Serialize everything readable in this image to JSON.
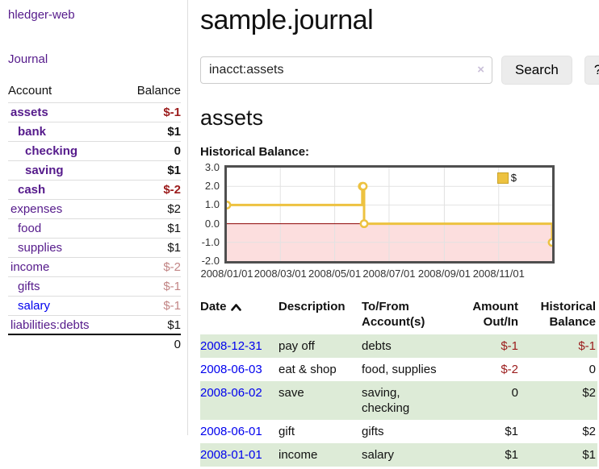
{
  "colors": {
    "link_purple": "#551a8b",
    "link_blue": "#0000ee",
    "negative_strong": "#9b1b1b",
    "negative_muted": "#c28585",
    "row_green": "#ddebd7",
    "button_gray": "#ececec",
    "series_yellow": "#edc240"
  },
  "sidebar": {
    "brand": "hledger-web",
    "journal_label": "Journal",
    "accounts_table": {
      "col_account": "Account",
      "col_balance": "Balance",
      "rows": [
        {
          "name": "assets",
          "balance": "$-1"
        },
        {
          "name": "bank",
          "balance": "$1"
        },
        {
          "name": "checking",
          "balance": "0"
        },
        {
          "name": "saving",
          "balance": "$1"
        },
        {
          "name": "cash",
          "balance": "$-2"
        },
        {
          "name": "expenses",
          "balance": "$2"
        },
        {
          "name": "food",
          "balance": "$1"
        },
        {
          "name": "supplies",
          "balance": "$1"
        },
        {
          "name": "income",
          "balance": "$-2"
        },
        {
          "name": "gifts",
          "balance": "$-1"
        },
        {
          "name": "salary",
          "balance": "$-1"
        },
        {
          "name": "liabilities:debts",
          "balance": "$1"
        }
      ],
      "total": "0"
    }
  },
  "main": {
    "title": "sample.journal",
    "search": {
      "value": "inacct:assets",
      "clear_icon": "×",
      "button_label": "Search",
      "help_label": "?"
    },
    "account_heading": "assets",
    "chart_title": "Historical Balance:"
  },
  "chart_data": {
    "type": "line",
    "step": true,
    "title": "Historical Balance",
    "series": [
      {
        "name": "$",
        "color": "#edc240",
        "points": [
          [
            "2008-01-01",
            1
          ],
          [
            "2008-06-01",
            2
          ],
          [
            "2008-06-02",
            2
          ],
          [
            "2008-06-03",
            0
          ],
          [
            "2008-12-31",
            -1
          ]
        ]
      }
    ],
    "x_range": [
      "2008-01-01",
      "2008-12-31"
    ],
    "ylim": [
      -2,
      3
    ],
    "yticks": [
      {
        "value": 3,
        "label": "3.0"
      },
      {
        "value": 2,
        "label": "2.0"
      },
      {
        "value": 1,
        "label": "1.0"
      },
      {
        "value": 0,
        "label": "0.0"
      },
      {
        "value": -1,
        "label": "-1.0"
      },
      {
        "value": -2,
        "label": "-2.0"
      }
    ],
    "xticks": [
      {
        "date": "2008-01-01",
        "label": "2008/01/01"
      },
      {
        "date": "2008-03-01",
        "label": "2008/03/01"
      },
      {
        "date": "2008-05-01",
        "label": "2008/05/01"
      },
      {
        "date": "2008-07-01",
        "label": "2008/07/01"
      },
      {
        "date": "2008-09-01",
        "label": "2008/09/01"
      },
      {
        "date": "2008-11-01",
        "label": "2008/11/01"
      }
    ],
    "legend_position": "top-right",
    "grid": true,
    "grid_color": "#e2e2e2",
    "zero_line_color": "#8b0000",
    "below_zero_fill": "#fcdede",
    "marker": "open-circle"
  },
  "register": {
    "headers": {
      "date": "Date",
      "description": "Description",
      "accounts": "To/From Account(s)",
      "amount": "Amount Out/In",
      "balance": "Historical Balance"
    },
    "rows": [
      {
        "date": "2008-12-31",
        "description": "pay off",
        "accounts": "debts",
        "amount": "$-1",
        "balance": "$-1"
      },
      {
        "date": "2008-06-03",
        "description": "eat & shop",
        "accounts": "food, supplies",
        "amount": "$-2",
        "balance": "0"
      },
      {
        "date": "2008-06-02",
        "description": "save",
        "accounts": "saving, checking",
        "amount": "0",
        "balance": "$2"
      },
      {
        "date": "2008-06-01",
        "description": "gift",
        "accounts": "gifts",
        "amount": "$1",
        "balance": "$2"
      },
      {
        "date": "2008-01-01",
        "description": "income",
        "accounts": "salary",
        "amount": "$1",
        "balance": "$1"
      }
    ]
  }
}
